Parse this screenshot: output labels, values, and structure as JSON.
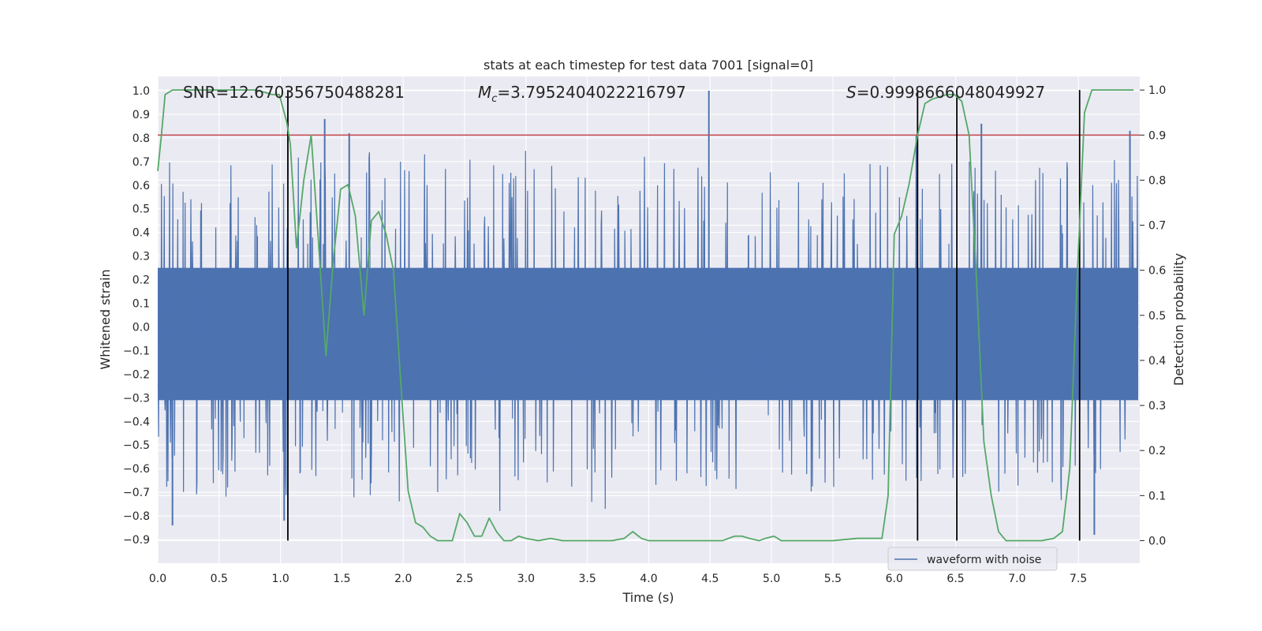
{
  "chart_data": {
    "type": "line",
    "title": "stats at each timestep for test data 7001 [signal=0]",
    "xlabel": "Time (s)",
    "ylabel_left": "Whitened strain",
    "ylabel_right": "Detection probability",
    "xlim": [
      0.0,
      8.0
    ],
    "ylim_left": [
      -1.0,
      1.06
    ],
    "ylim_right": [
      -0.05,
      1.03
    ],
    "x_ticks": [
      0.0,
      0.5,
      1.0,
      1.5,
      2.0,
      2.5,
      3.0,
      3.5,
      4.0,
      4.5,
      5.0,
      5.5,
      6.0,
      6.5,
      7.0,
      7.5
    ],
    "x_tick_labels": [
      "0.0",
      "0.5",
      "1.0",
      "1.5",
      "2.0",
      "2.5",
      "3.0",
      "3.5",
      "4.0",
      "4.5",
      "5.0",
      "5.5",
      "6.0",
      "6.5",
      "7.0",
      "7.5"
    ],
    "y_left_ticks": [
      1.0,
      0.9,
      0.8,
      0.7,
      0.6,
      0.5,
      0.4,
      0.3,
      0.2,
      0.1,
      0.0,
      -0.1,
      -0.2,
      -0.3,
      -0.4,
      -0.5,
      -0.6,
      -0.7,
      -0.8,
      -0.9
    ],
    "y_left_tick_labels": [
      "1.0",
      "0.9",
      "0.8",
      "0.7",
      "0.6",
      "0.5",
      "0.4",
      "0.3",
      "0.2",
      "0.1",
      "0.0",
      "−0.1",
      "−0.2",
      "−0.3",
      "−0.4",
      "−0.5",
      "−0.6",
      "−0.7",
      "−0.8",
      "−0.9"
    ],
    "y_right_ticks": [
      1.0,
      0.9,
      0.8,
      0.7,
      0.6,
      0.5,
      0.4,
      0.3,
      0.2,
      0.1,
      0.0
    ],
    "y_right_tick_labels": [
      "1.0",
      "0.9",
      "0.8",
      "0.7",
      "0.6",
      "0.5",
      "0.4",
      "0.3",
      "0.2",
      "0.1",
      "0.0"
    ],
    "annotations": {
      "snr": "SNR=12.670356750488281",
      "mc_symbol": "M",
      "mc_sub": "c",
      "mc_value": "=3.7952404022216797",
      "s_symbol": "S",
      "s_value": "=0.9998666048049927"
    },
    "threshold": {
      "value": 0.9,
      "axis": "right",
      "color": "#c44e52"
    },
    "vertical_markers": [
      1.06,
      6.19,
      6.51,
      7.51
    ],
    "legend": {
      "label": "waveform with noise",
      "placement": "lower-right"
    },
    "colors": {
      "waveform": "#4c72b0",
      "probability": "#55a868",
      "marker": "#000000",
      "background": "#eaeaf2"
    },
    "waveform": {
      "typical_envelope": [
        -0.31,
        0.25
      ],
      "spike_max": 1.0,
      "spike_min": -0.88,
      "notable_spikes": [
        {
          "t": 4.49,
          "v": 1.0
        },
        {
          "t": 1.36,
          "v": 0.88
        },
        {
          "t": 1.56,
          "v": 0.82
        },
        {
          "t": 0.12,
          "v": -0.84
        },
        {
          "t": 7.63,
          "v": -0.88
        },
        {
          "t": 1.03,
          "v": -0.82
        },
        {
          "t": 6.18,
          "v": 0.81
        },
        {
          "t": 6.71,
          "v": 0.86
        },
        {
          "t": 7.92,
          "v": 0.83
        }
      ]
    },
    "series": [
      {
        "name": "Detection probability",
        "axis": "right",
        "x": [
          0.0,
          0.03,
          0.06,
          0.12,
          0.2,
          0.3,
          0.4,
          0.5,
          0.6,
          0.7,
          0.8,
          0.87,
          0.93,
          0.99,
          1.05,
          1.08,
          1.13,
          1.19,
          1.25,
          1.31,
          1.37,
          1.43,
          1.49,
          1.55,
          1.61,
          1.68,
          1.74,
          1.8,
          1.86,
          1.92,
          1.98,
          2.04,
          2.1,
          2.16,
          2.22,
          2.28,
          2.34,
          2.4,
          2.46,
          2.52,
          2.58,
          2.64,
          2.7,
          2.76,
          2.82,
          2.88,
          2.94,
          3.0,
          3.1,
          3.2,
          3.3,
          3.4,
          3.5,
          3.6,
          3.7,
          3.8,
          3.87,
          3.94,
          4.0,
          4.1,
          4.2,
          4.3,
          4.4,
          4.5,
          4.6,
          4.7,
          4.76,
          4.82,
          4.9,
          4.95,
          5.02,
          5.08,
          5.15,
          5.3,
          5.5,
          5.7,
          5.8,
          5.9,
          5.95,
          6.0,
          6.06,
          6.12,
          6.19,
          6.25,
          6.31,
          6.37,
          6.43,
          6.49,
          6.55,
          6.61,
          6.67,
          6.73,
          6.79,
          6.85,
          6.91,
          6.97,
          7.03,
          7.1,
          7.2,
          7.3,
          7.37,
          7.43,
          7.49,
          7.55,
          7.61,
          7.67,
          7.73,
          7.79,
          7.85,
          7.91,
          7.95
        ],
        "y": [
          0.82,
          0.9,
          0.99,
          1.0,
          1.0,
          1.0,
          1.0,
          1.0,
          1.0,
          1.0,
          1.0,
          0.995,
          0.99,
          0.99,
          0.93,
          0.88,
          0.65,
          0.8,
          0.9,
          0.66,
          0.41,
          0.62,
          0.78,
          0.79,
          0.72,
          0.5,
          0.71,
          0.73,
          0.68,
          0.6,
          0.35,
          0.11,
          0.04,
          0.03,
          0.01,
          0.0,
          0.0,
          0.0,
          0.06,
          0.04,
          0.01,
          0.01,
          0.05,
          0.02,
          0.0,
          0.0,
          0.01,
          0.005,
          0.0,
          0.005,
          0.0,
          0.0,
          0.0,
          0.0,
          0.0,
          0.005,
          0.02,
          0.005,
          0.0,
          0.0,
          0.0,
          0.0,
          0.0,
          0.0,
          0.0,
          0.01,
          0.01,
          0.005,
          0.0,
          0.005,
          0.01,
          0.0,
          0.0,
          0.0,
          0.0,
          0.005,
          0.005,
          0.005,
          0.1,
          0.68,
          0.72,
          0.79,
          0.9,
          0.97,
          0.98,
          0.985,
          0.99,
          0.99,
          0.975,
          0.9,
          0.58,
          0.22,
          0.1,
          0.02,
          0.0,
          0.0,
          0.0,
          0.0,
          0.0,
          0.005,
          0.02,
          0.16,
          0.58,
          0.95,
          1.0,
          1.0,
          1.0,
          1.0,
          1.0,
          1.0,
          1.0
        ]
      }
    ]
  }
}
